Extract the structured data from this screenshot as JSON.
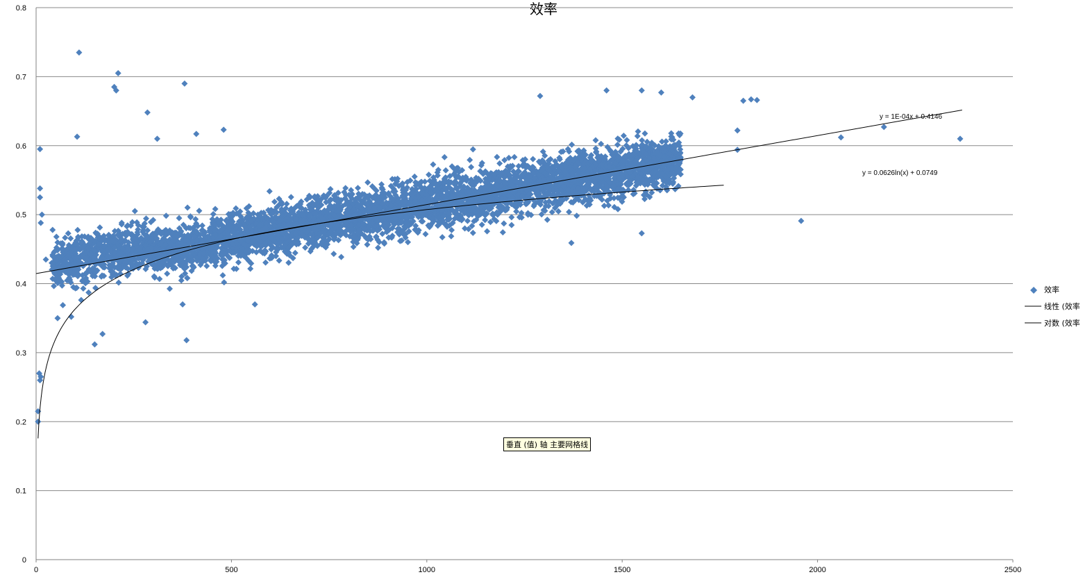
{
  "chart_data": {
    "type": "scatter",
    "title": "效率",
    "xlim": [
      0,
      2500
    ],
    "ylim": [
      0,
      0.8
    ],
    "x_ticks": [
      "0",
      "500",
      "1000",
      "1500",
      "2000",
      "2500"
    ],
    "y_ticks": [
      "0",
      "0.1",
      "0.2",
      "0.3",
      "0.4",
      "0.5",
      "0.6",
      "0.7",
      "0.8"
    ],
    "grid": true,
    "legend_position": "right",
    "series": [
      {
        "name": "效率",
        "kind": "scatter",
        "marker": "diamond",
        "color": "#4f81bd",
        "note": "dense cloud of points following roughly y = 1E-04x + 0.4146, x from ~0 to ~1650",
        "points": [
          [
            5,
            0.2
          ],
          [
            5,
            0.215
          ],
          [
            8,
            0.27
          ],
          [
            10,
            0.26
          ],
          [
            12,
            0.265
          ],
          [
            10,
            0.595
          ],
          [
            10,
            0.538
          ],
          [
            10,
            0.525
          ],
          [
            15,
            0.5
          ],
          [
            12,
            0.488
          ],
          [
            110,
            0.735
          ],
          [
            210,
            0.705
          ],
          [
            200,
            0.685
          ],
          [
            205,
            0.68
          ],
          [
            380,
            0.69
          ],
          [
            285,
            0.648
          ],
          [
            480,
            0.623
          ],
          [
            410,
            0.617
          ],
          [
            310,
            0.61
          ],
          [
            105,
            0.613
          ],
          [
            25,
            0.435
          ],
          [
            40,
            0.43
          ],
          [
            55,
            0.35
          ],
          [
            90,
            0.352
          ],
          [
            150,
            0.312
          ],
          [
            170,
            0.327
          ],
          [
            280,
            0.344
          ],
          [
            385,
            0.318
          ],
          [
            560,
            0.37
          ],
          [
            375,
            0.37
          ],
          [
            1290,
            0.672
          ],
          [
            1460,
            0.68
          ],
          [
            1550,
            0.68
          ],
          [
            1600,
            0.677
          ],
          [
            1680,
            0.67
          ],
          [
            1810,
            0.665
          ],
          [
            1830,
            0.667
          ],
          [
            1845,
            0.666
          ],
          [
            1795,
            0.622
          ],
          [
            1795,
            0.594
          ],
          [
            2060,
            0.612
          ],
          [
            2170,
            0.627
          ],
          [
            2365,
            0.61
          ],
          [
            1958,
            0.491
          ],
          [
            1550,
            0.473
          ],
          [
            1370,
            0.459
          ],
          [
            1480,
            0.511
          ]
        ]
      },
      {
        "name": "线性 (效率)",
        "kind": "trendline",
        "equation": "y = 1E-04x + 0.4146",
        "color": "#000000"
      },
      {
        "name": "对数 (效率)",
        "kind": "trendline",
        "equation": "y = 0.0626ln(x) + 0.0749",
        "color": "#000000"
      }
    ],
    "legend": [
      {
        "label": "效率",
        "marker": "diamond"
      },
      {
        "label": "线性 (效率",
        "marker": "line"
      },
      {
        "label": "对数 (效率",
        "marker": "line"
      }
    ],
    "trendlines": [
      {
        "label": "y = 1E-04x + 0.4146",
        "slope": 0.0001,
        "intercept": 0.4146,
        "x_from": 0,
        "x_to": 2370
      },
      {
        "label": "y = 0.0626ln(x) + 0.0749",
        "a": 0.0626,
        "b": 0.0749,
        "x_from": 5,
        "x_to": 1760
      }
    ],
    "tooltip": "垂直 (值) 轴 主要网格线"
  }
}
